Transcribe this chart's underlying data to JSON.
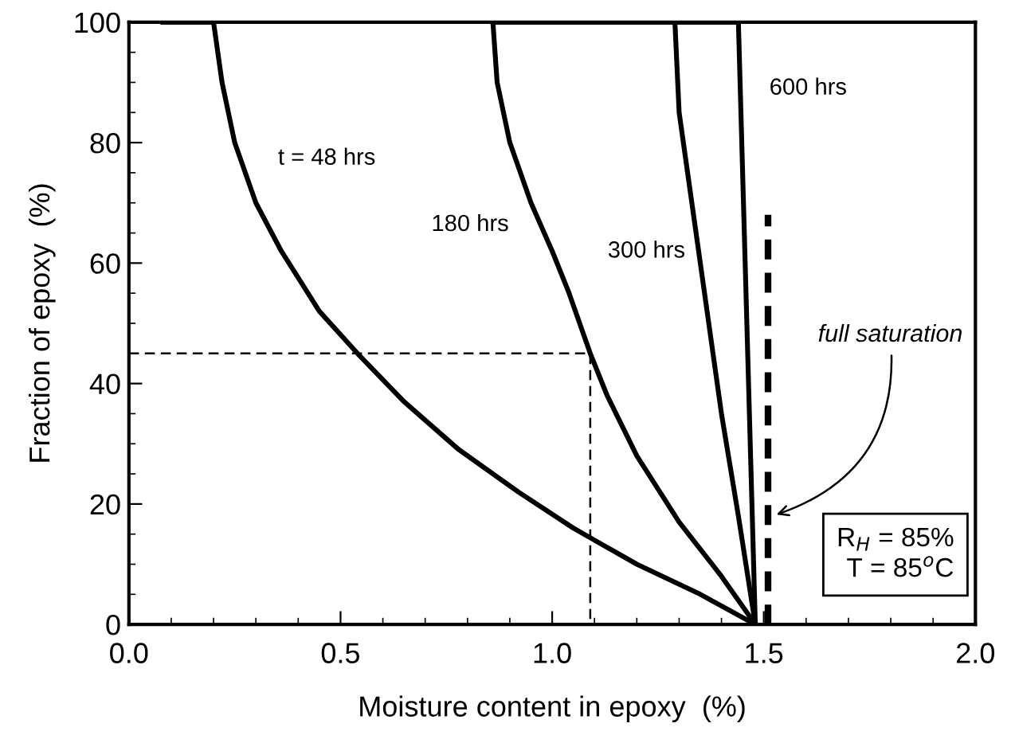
{
  "chart_data": {
    "type": "line",
    "xlabel": "Moisture content in epoxy  (%)",
    "ylabel": "Fraction of epoxy  (%)",
    "xlim": [
      0,
      2
    ],
    "ylim": [
      0,
      100
    ],
    "xticks": [
      {
        "value": 0,
        "label": "0.0"
      },
      {
        "value": 0.5,
        "label": "0.5"
      },
      {
        "value": 1,
        "label": "1.0"
      },
      {
        "value": 1.5,
        "label": "1.5"
      },
      {
        "value": 2,
        "label": "2.0"
      }
    ],
    "yticks": [
      0,
      20,
      40,
      60,
      80,
      100
    ],
    "grid": false,
    "marker": "none",
    "series": [
      {
        "name": "t = 48 hrs",
        "color": "#000000",
        "line_style": "solid",
        "x": [
          0.08,
          0.2,
          0.22,
          0.25,
          0.3,
          0.36,
          0.45,
          0.54,
          0.65,
          0.78,
          0.92,
          1.05,
          1.2,
          1.35,
          1.48
        ],
        "values": [
          100,
          100,
          90,
          80,
          70,
          62,
          52,
          45,
          37,
          29,
          22,
          16,
          10,
          5,
          0
        ]
      },
      {
        "name": "180 hrs",
        "color": "#000000",
        "line_style": "solid",
        "x": [
          0.86,
          0.87,
          0.9,
          0.95,
          1.0,
          1.04,
          1.09,
          1.13,
          1.2,
          1.3,
          1.4,
          1.48
        ],
        "values": [
          100,
          90,
          80,
          70,
          62,
          55,
          45,
          38,
          28,
          17,
          8,
          0
        ]
      },
      {
        "name": "300 hrs",
        "color": "#000000",
        "line_style": "solid",
        "x": [
          1.29,
          1.3,
          1.33,
          1.36,
          1.4,
          1.44,
          1.48
        ],
        "values": [
          100,
          85,
          70,
          55,
          35,
          18,
          0
        ]
      },
      {
        "name": "600 hrs",
        "color": "#000000",
        "line_style": "solid",
        "x": [
          0.86,
          1.44,
          1.48
        ],
        "values": [
          100,
          100,
          0
        ]
      },
      {
        "color": "#000000",
        "line_style": "dashed",
        "x": [
          1.51,
          1.51
        ],
        "values": [
          0,
          68
        ]
      },
      {
        "color": "#000000",
        "line_style": "dotted",
        "x": [
          0.0,
          1.09,
          1.09
        ],
        "values": [
          45,
          45,
          0
        ]
      }
    ],
    "annotations": [
      {
        "text": "full saturation",
        "x": 1.52,
        "y": 18
      },
      "R$_{H}$ = 85%\nT = 85$^{o}$C"
    ]
  }
}
